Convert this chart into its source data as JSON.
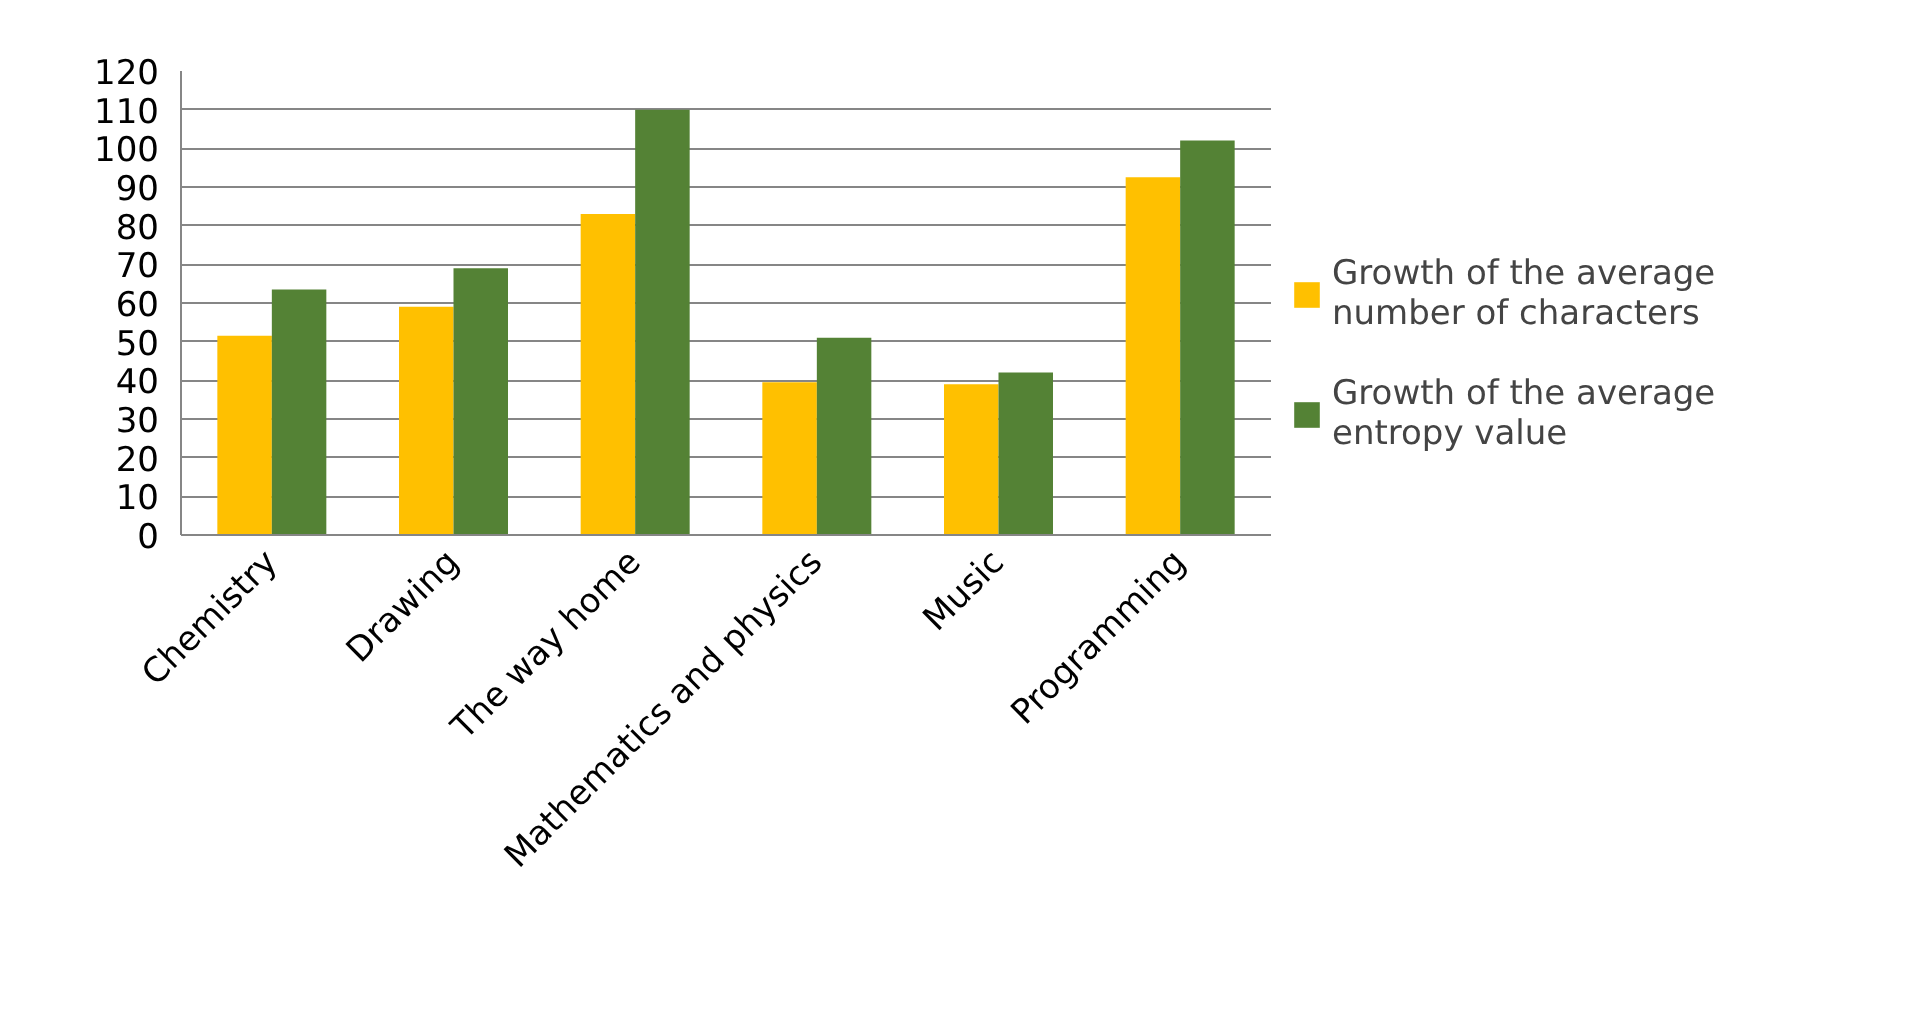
{
  "chart_data": {
    "type": "bar",
    "categories": [
      "Chemistry",
      "Drawing",
      "The way home",
      "Mathematics and physics",
      "Music",
      "Programming"
    ],
    "series": [
      {
        "name": "Growth of the average number of characters",
        "color": "#ffc000",
        "values": [
          51.5,
          59,
          83,
          39.5,
          39,
          92.5
        ]
      },
      {
        "name": "Growth of the average entropy value",
        "color": "#548235",
        "values": [
          63.5,
          69,
          110,
          51,
          42,
          102
        ]
      }
    ],
    "ylim": [
      0,
      120
    ],
    "yticks": [
      0,
      10,
      20,
      30,
      40,
      50,
      60,
      70,
      80,
      90,
      100,
      110,
      120
    ],
    "grid": "y",
    "legend": "right"
  }
}
